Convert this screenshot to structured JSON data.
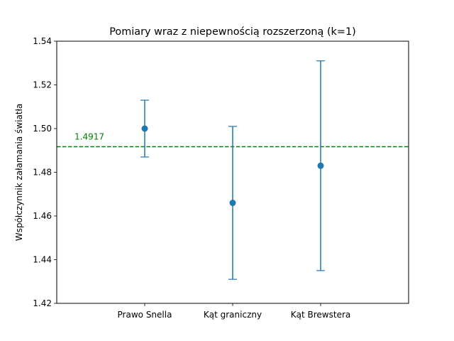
{
  "chart_data": {
    "type": "scatter",
    "title": "Pomiary wraz z niepewnością rozszerzoną (k=1)",
    "xlabel": "",
    "ylabel": "Współczynnik załamania światła",
    "categories": [
      "Prawo Snella",
      "Kąt graniczny",
      "Kąt Brewstera"
    ],
    "values": [
      1.5,
      1.466,
      1.483
    ],
    "errors": [
      0.013,
      0.035,
      0.048
    ],
    "ylim": [
      1.42,
      1.54
    ],
    "xlim": [
      0,
      4
    ],
    "yticks": [
      1.42,
      1.44,
      1.46,
      1.48,
      1.5,
      1.52,
      1.54
    ],
    "ytick_labels": [
      "1.42",
      "1.44",
      "1.46",
      "1.48",
      "1.50",
      "1.52",
      "1.54"
    ],
    "reference_line": {
      "value": 1.4917,
      "label": "1.4917",
      "color": "#008000",
      "style": "dashed"
    },
    "colors": {
      "series": "#1f77b4",
      "reference": "#008000"
    },
    "grid": false,
    "legend": "none"
  }
}
